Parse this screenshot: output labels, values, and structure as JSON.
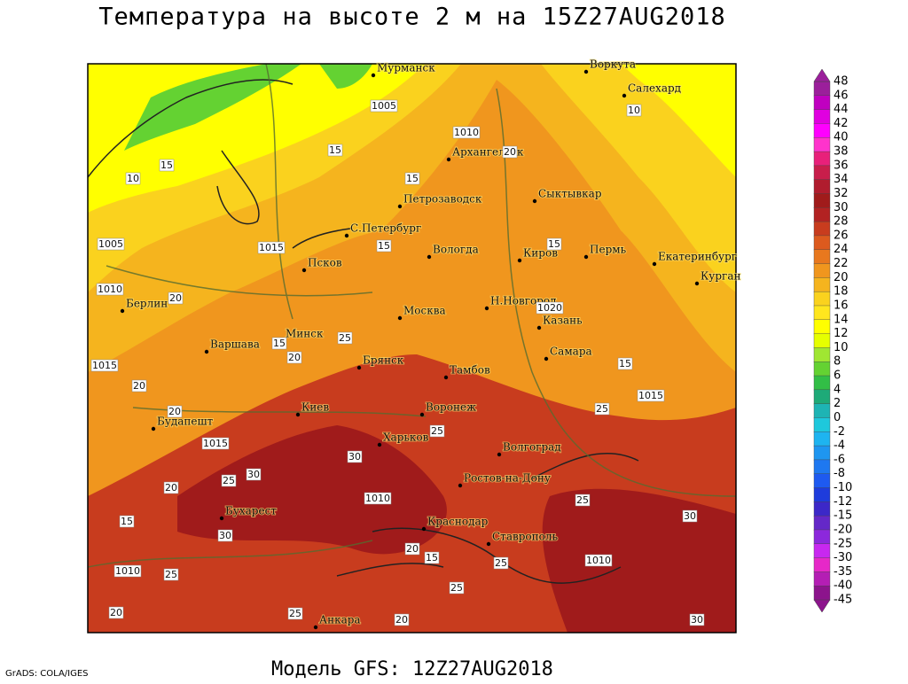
{
  "title": "Температура на высоте 2 м на 15Z27AUG2018",
  "footer": {
    "credit": "GrADS: COLA/IGES",
    "model": "Модель GFS: 12Z27AUG2018"
  },
  "cities": [
    "Мурманск",
    "Воркута",
    "Салехард",
    "Архангельск",
    "Сыктывкар",
    "Петрозаводск",
    "С.Петербург",
    "Вологда",
    "Киров",
    "Пермь",
    "Екатеринбург",
    "Курган",
    "Псков",
    "Берлин",
    "Н.Новгород",
    "Казань",
    "Москва",
    "Минск",
    "Варшава",
    "Брянск",
    "Тамбов",
    "Самара",
    "Воронеж",
    "Киев",
    "Будапешт",
    "Харьков",
    "Волгоград",
    "Ростов-на-Дону",
    "Бухарест",
    "Краснодар",
    "Ставрополь",
    "Анкара"
  ],
  "contour_labels": [
    10,
    15,
    1005,
    1010,
    20,
    15,
    15,
    10,
    1005,
    15,
    1015,
    15,
    1010,
    20,
    1020,
    25,
    15,
    20,
    1015,
    20,
    20,
    15,
    1015,
    25,
    25,
    1015,
    30,
    25,
    20,
    30,
    1010,
    25,
    15,
    30,
    1010,
    20,
    15,
    25,
    25,
    1010,
    25,
    30,
    20,
    20,
    25,
    30
  ],
  "colorbar": {
    "levels": [
      48,
      46,
      44,
      42,
      40,
      38,
      36,
      34,
      32,
      30,
      28,
      26,
      24,
      22,
      20,
      18,
      16,
      14,
      12,
      10,
      8,
      6,
      4,
      2,
      0,
      -2,
      -4,
      -6,
      -8,
      -10,
      -12,
      -15,
      -20,
      -25,
      -30,
      -35,
      -40,
      -45
    ],
    "colors": [
      "#9b1f9b",
      "#c000c0",
      "#e000e0",
      "#ff00ff",
      "#ff33cc",
      "#e8207a",
      "#c81e4b",
      "#b01c2e",
      "#a01b1b",
      "#b22222",
      "#c83c1e",
      "#dc5a1e",
      "#e8781e",
      "#f0961e",
      "#f5b41e",
      "#fad21e",
      "#ffe61e",
      "#ffff00",
      "#e6ff00",
      "#a0e632",
      "#64d232",
      "#32be46",
      "#1eaa78",
      "#1eb4b4",
      "#1ec8dc",
      "#1eb4f0",
      "#1e96f0",
      "#1e78f0",
      "#1e5af0",
      "#1e3cdc",
      "#3c28c8",
      "#6428c8",
      "#8c28dc",
      "#c828f0",
      "#e628c8",
      "#b41eb4",
      "#8c148c"
    ]
  }
}
